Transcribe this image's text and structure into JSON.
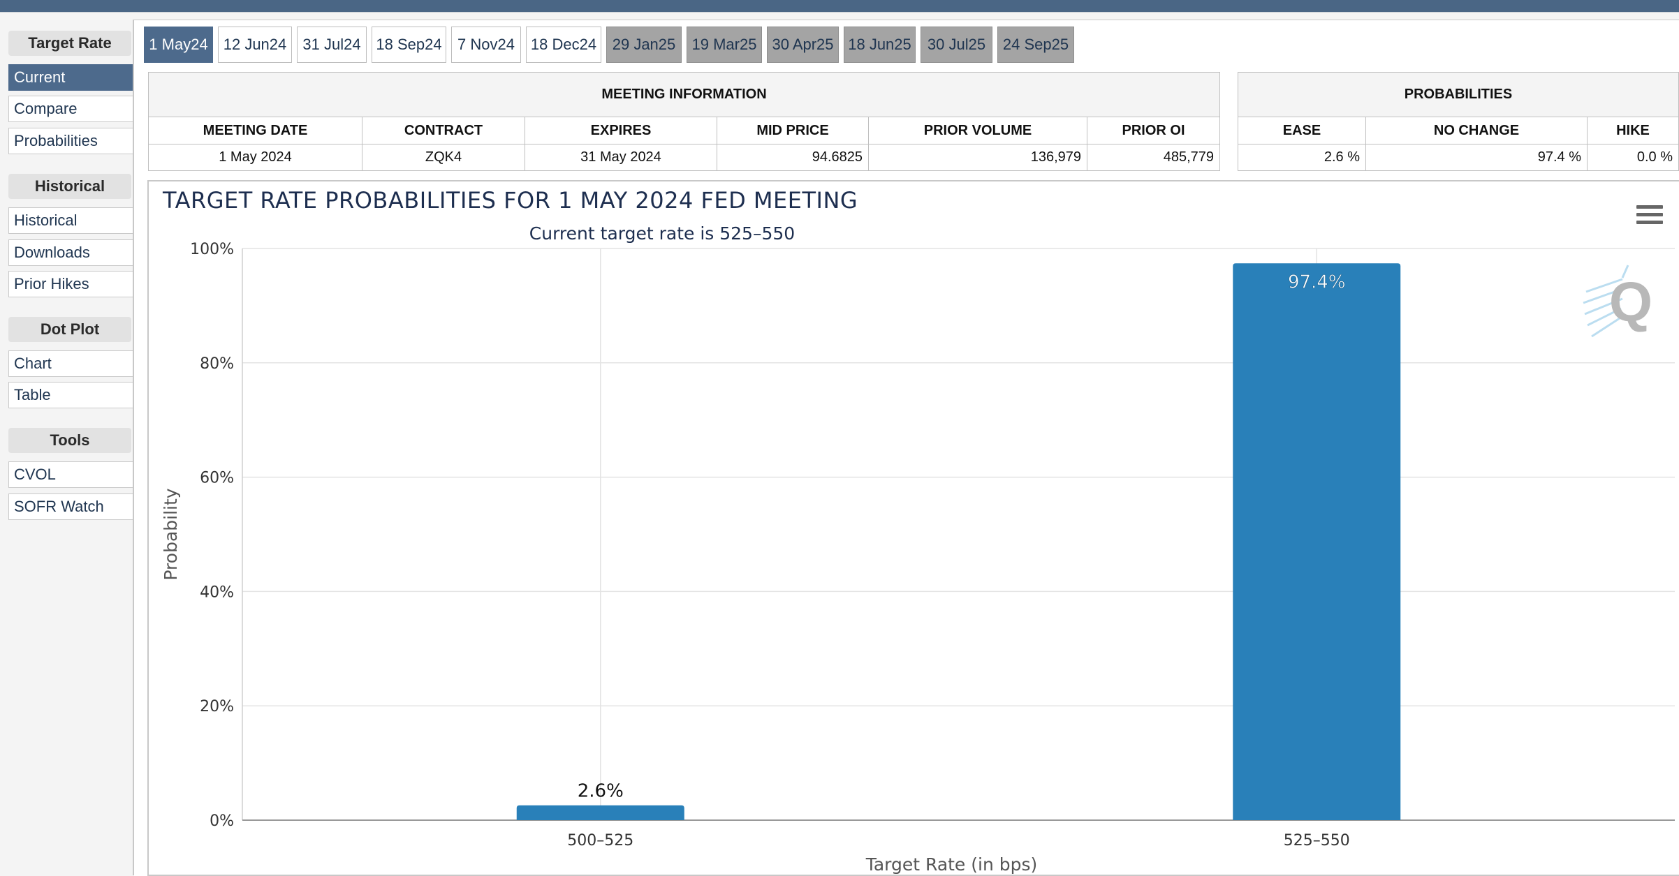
{
  "sidebar": {
    "sections": [
      {
        "heading": "Target Rate",
        "items": [
          "Current",
          "Compare",
          "Probabilities"
        ]
      },
      {
        "heading": "Historical",
        "items": [
          "Historical",
          "Downloads",
          "Prior Hikes"
        ]
      },
      {
        "heading": "Dot Plot",
        "items": [
          "Chart",
          "Table"
        ]
      },
      {
        "heading": "Tools",
        "items": [
          "CVOL",
          "SOFR Watch"
        ]
      }
    ],
    "active_item": "Current"
  },
  "tabs": [
    {
      "label": "1 May24",
      "state": "active"
    },
    {
      "label": "12 Jun24",
      "state": "normal"
    },
    {
      "label": "31 Jul24",
      "state": "normal"
    },
    {
      "label": "18 Sep24",
      "state": "normal"
    },
    {
      "label": "7 Nov24",
      "state": "normal"
    },
    {
      "label": "18 Dec24",
      "state": "normal"
    },
    {
      "label": "29 Jan25",
      "state": "future"
    },
    {
      "label": "19 Mar25",
      "state": "future"
    },
    {
      "label": "30 Apr25",
      "state": "future"
    },
    {
      "label": "18 Jun25",
      "state": "future"
    },
    {
      "label": "30 Jul25",
      "state": "future"
    },
    {
      "label": "24 Sep25",
      "state": "future"
    }
  ],
  "meeting_info": {
    "caption": "MEETING INFORMATION",
    "headers": [
      "MEETING DATE",
      "CONTRACT",
      "EXPIRES",
      "MID PRICE",
      "PRIOR VOLUME",
      "PRIOR OI"
    ],
    "row": {
      "meeting_date": "1 May 2024",
      "contract": "ZQK4",
      "expires": "31 May 2024",
      "mid_price": "94.6825",
      "prior_volume": "136,979",
      "prior_oi": "485,779"
    }
  },
  "probabilities": {
    "caption": "PROBABILITIES",
    "headers": [
      "EASE",
      "NO CHANGE",
      "HIKE"
    ],
    "row": {
      "ease": "2.6 %",
      "no_change": "97.4 %",
      "hike": "0.0 %"
    }
  },
  "chart_data": {
    "type": "bar",
    "title": "TARGET RATE PROBABILITIES FOR 1 MAY 2024 FED MEETING",
    "subtitle": "Current target rate is 525–550",
    "categories": [
      "500–525",
      "525–550"
    ],
    "values": [
      2.6,
      97.4
    ],
    "data_labels": [
      "2.6%",
      "97.4%"
    ],
    "xlabel": "Target Rate (in bps)",
    "ylabel": "Probability",
    "ylim": [
      0,
      100
    ],
    "yticks": [
      "0%",
      "20%",
      "40%",
      "60%",
      "80%",
      "100%"
    ],
    "grid": true,
    "bar_color": "#2980b9"
  },
  "icons": {
    "menu": "hamburger-menu-icon",
    "watermark": "quikstrike-q-logo"
  }
}
